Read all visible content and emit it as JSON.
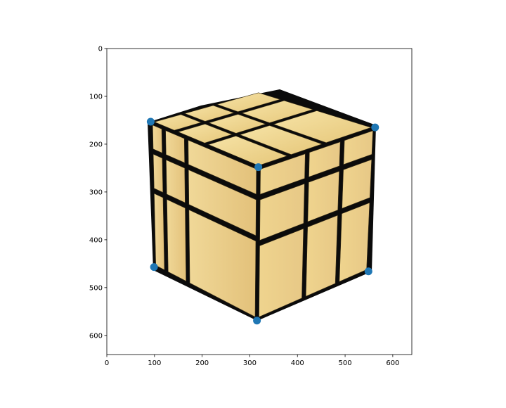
{
  "chart_data": {
    "type": "scatter",
    "title": "",
    "xlabel": "",
    "ylabel": "",
    "xlim": [
      0,
      640
    ],
    "ylim": [
      640,
      0
    ],
    "x_ticks": [
      0,
      100,
      200,
      300,
      400,
      500,
      600
    ],
    "y_ticks": [
      0,
      100,
      200,
      300,
      400,
      500,
      600
    ],
    "x_tick_labels": [
      "0",
      "100",
      "200",
      "300",
      "400",
      "500",
      "600"
    ],
    "y_tick_labels": [
      "0",
      "100",
      "200",
      "300",
      "400",
      "500",
      "600"
    ],
    "grid": false,
    "background_image": "mirror-cube-photo",
    "marker_color": "#1f77b4",
    "points": [
      {
        "x": 92,
        "y": 153
      },
      {
        "x": 563,
        "y": 165
      },
      {
        "x": 318,
        "y": 248
      },
      {
        "x": 99,
        "y": 457
      },
      {
        "x": 549,
        "y": 466
      },
      {
        "x": 315,
        "y": 569
      }
    ]
  }
}
